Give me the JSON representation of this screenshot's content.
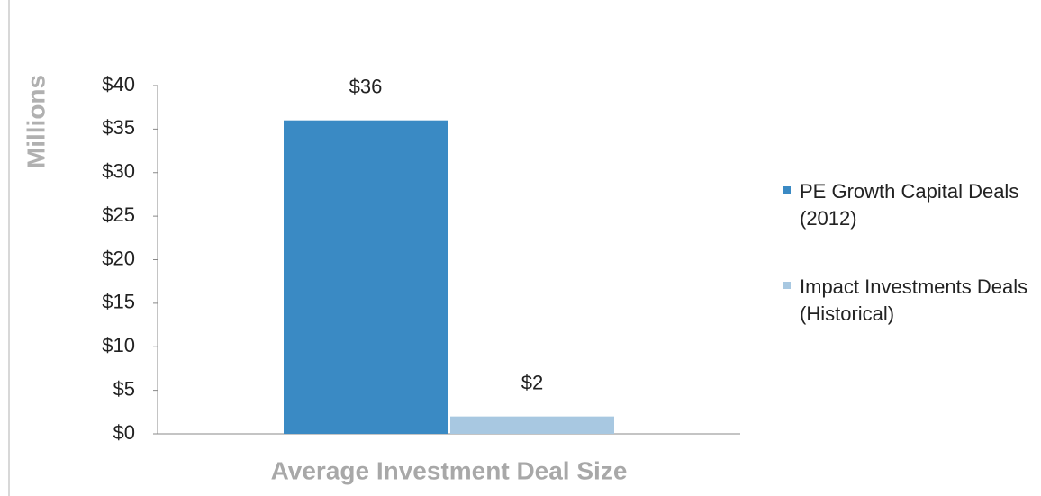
{
  "chart_data": {
    "type": "bar",
    "y_label": "Millions",
    "categories": [
      "Average Investment Deal Size"
    ],
    "series": [
      {
        "name": "PE Growth Capital Deals (2012)",
        "color": "#3a8ac4",
        "values": [
          36
        ],
        "value_labels": [
          "$36"
        ]
      },
      {
        "name": "Impact Investments Deals (Historical)",
        "color": "#a8c8e1",
        "values": [
          2
        ],
        "value_labels": [
          "$2"
        ]
      }
    ],
    "ylim": [
      0,
      40
    ],
    "yticks": [
      {
        "value": 0,
        "label": "$0"
      },
      {
        "value": 5,
        "label": "$5"
      },
      {
        "value": 10,
        "label": "$10"
      },
      {
        "value": 15,
        "label": "$15"
      },
      {
        "value": 20,
        "label": "$20"
      },
      {
        "value": 25,
        "label": "$25"
      },
      {
        "value": 30,
        "label": "$30"
      },
      {
        "value": 35,
        "label": "$35"
      },
      {
        "value": 40,
        "label": "$40"
      }
    ],
    "grid": false,
    "legend": "right"
  }
}
